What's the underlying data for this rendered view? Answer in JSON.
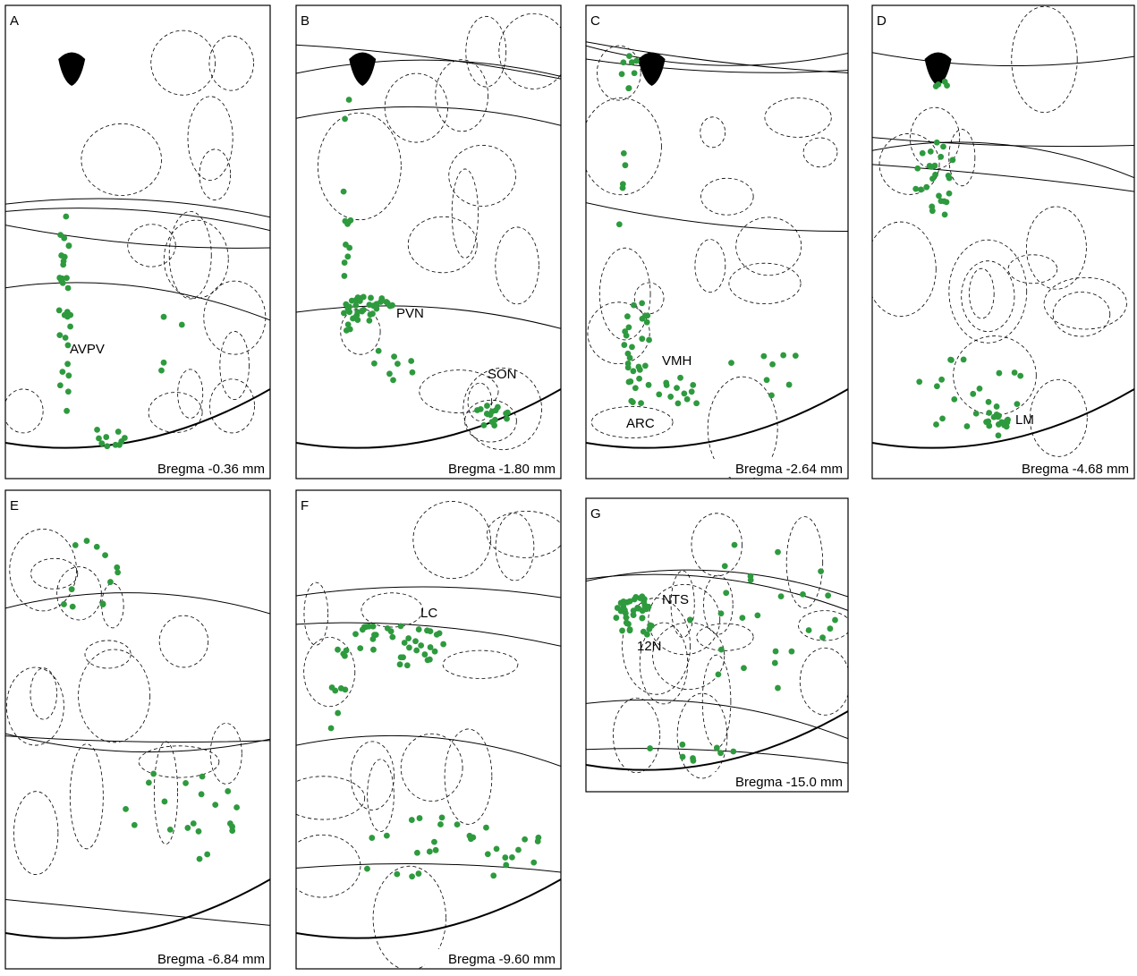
{
  "panels": [
    {
      "letter": "A",
      "bregma": "Bregma -0.36 mm",
      "labels": [
        "AVPV"
      ]
    },
    {
      "letter": "B",
      "bregma": "Bregma -1.80 mm",
      "labels": [
        "PVN",
        "SON"
      ]
    },
    {
      "letter": "C",
      "bregma": "Bregma -2.64 mm",
      "labels": [
        "VMH",
        "ARC"
      ]
    },
    {
      "letter": "D",
      "bregma": "Bregma -4.68 mm",
      "labels": [
        "LM"
      ]
    },
    {
      "letter": "E",
      "bregma": "Bregma -6.84 mm",
      "labels": []
    },
    {
      "letter": "F",
      "bregma": "Bregma -9.60 mm",
      "labels": [
        "LC"
      ]
    },
    {
      "letter": "G",
      "bregma": "Bregma -15.0 mm",
      "labels": [
        "NTS",
        "12N"
      ]
    }
  ]
}
